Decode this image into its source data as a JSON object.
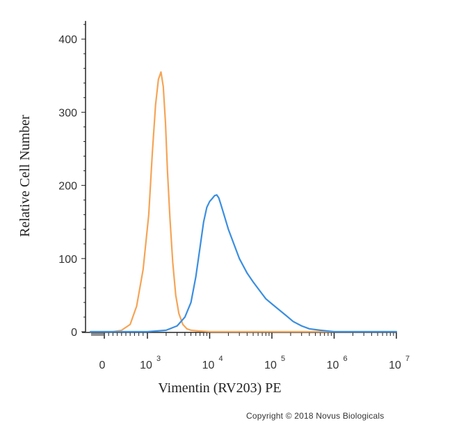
{
  "chart_data": {
    "type": "line",
    "title": "",
    "xlabel": "Vimentin (RV203) PE",
    "ylabel": "Relative Cell Number",
    "x_scale": "biexponential",
    "ylim": [
      0,
      420
    ],
    "grid": false,
    "legend": "none",
    "y_ticks": [
      {
        "value": 0,
        "label": "0"
      },
      {
        "value": 100,
        "label": "100"
      },
      {
        "value": 200,
        "label": "200"
      },
      {
        "value": 300,
        "label": "300"
      },
      {
        "value": 400,
        "label": "400"
      }
    ],
    "x_ticks": [
      {
        "value": 0,
        "label": "0",
        "exp": ""
      },
      {
        "value": 1000,
        "label": "10",
        "exp": "3"
      },
      {
        "value": 10000,
        "label": "10",
        "exp": "4"
      },
      {
        "value": 100000,
        "label": "10",
        "exp": "5"
      },
      {
        "value": 1000000,
        "label": "10",
        "exp": "6"
      },
      {
        "value": 10000000,
        "label": "10",
        "exp": "7"
      }
    ],
    "series": [
      {
        "color": "#f5a455",
        "x": [
          -1000,
          200,
          400,
          600,
          750,
          900,
          1050,
          1200,
          1350,
          1500,
          1650,
          1800,
          1950,
          2100,
          2300,
          2550,
          2850,
          3200,
          3700,
          4300,
          5000,
          6500,
          10000,
          100000,
          10000000
        ],
        "y": [
          0,
          0,
          2,
          10,
          35,
          85,
          160,
          245,
          310,
          345,
          355,
          335,
          285,
          220,
          155,
          95,
          50,
          25,
          10,
          4,
          2,
          1,
          0,
          0,
          0
        ]
      },
      {
        "color": "#3a8ee0",
        "x": [
          -1000,
          1000,
          2000,
          3000,
          4000,
          5000,
          6000,
          7000,
          8000,
          9000,
          10000,
          11000,
          12000,
          13000,
          14000,
          15000,
          17000,
          20000,
          25000,
          30000,
          40000,
          50000,
          65000,
          80000,
          100000,
          130000,
          170000,
          220000,
          300000,
          400000,
          600000,
          1000000,
          10000000
        ],
        "y": [
          0,
          0,
          2,
          8,
          20,
          40,
          75,
          115,
          150,
          170,
          178,
          182,
          186,
          187,
          183,
          175,
          160,
          140,
          118,
          100,
          80,
          68,
          55,
          45,
          38,
          30,
          22,
          14,
          8,
          4,
          2,
          0,
          0
        ]
      }
    ]
  },
  "footer": {
    "copyright": "Copyright © 2018 Novus Biologicals"
  }
}
